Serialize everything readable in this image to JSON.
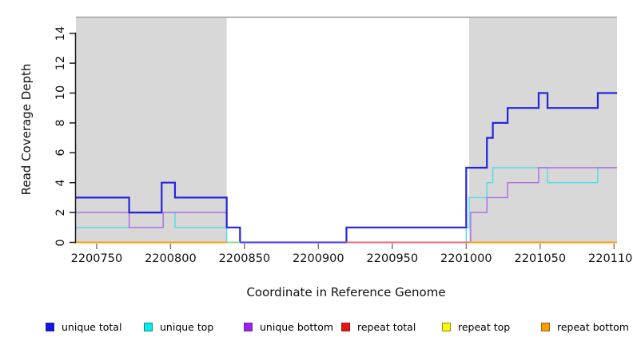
{
  "y_axis": {
    "label": "Read Coverage Depth",
    "tick_labels": [
      "0",
      "2",
      "4",
      "6",
      "8",
      "10",
      "12",
      "14"
    ],
    "tick_values": [
      0,
      2,
      4,
      6,
      8,
      10,
      12,
      14
    ]
  },
  "x_axis": {
    "label": "Coordinate in Reference Genome",
    "tick_labels": [
      "2200750",
      "2200800",
      "2200850",
      "2200900",
      "2200950",
      "2201000",
      "2201050",
      "2201100"
    ],
    "tick_values": [
      2200750,
      2200800,
      2200850,
      2200900,
      2200950,
      2201000,
      2201050,
      2201100
    ]
  },
  "legend": {
    "items": [
      {
        "label": "unique total",
        "color": "#1414e8"
      },
      {
        "label": "unique top",
        "color": "#00eded"
      },
      {
        "label": "unique bottom",
        "color": "#a020f0"
      },
      {
        "label": "repeat total",
        "color": "#ee1111"
      },
      {
        "label": "repeat top",
        "color": "#fbfb00"
      },
      {
        "label": "repeat bottom",
        "color": "#ff9d00"
      }
    ]
  },
  "chart_data": {
    "type": "line",
    "subtype": "step-coverage",
    "title": "",
    "xlabel": "Coordinate in Reference Genome",
    "ylabel": "Read Coverage Depth",
    "xlim": [
      2200736,
      2201102
    ],
    "ylim": [
      0,
      15.08
    ],
    "grid": false,
    "legend_position": "bottom",
    "shaded_region_color": "#d8d8d8",
    "plot_top_border_color": "#999999",
    "axis_color": "#1a1a1a",
    "x_tick_color": "#757575",
    "shaded_regions": [
      {
        "x0": 2200736,
        "x1": 2200838
      },
      {
        "x0": 2201002,
        "x1": 2201102
      }
    ],
    "series": [
      {
        "name": "repeat total",
        "color": "#ee1111",
        "width": 1.4,
        "steps": [
          [
            2200736,
            0
          ]
        ]
      },
      {
        "name": "repeat top",
        "color": "#fbfb00",
        "width": 1.4,
        "steps": [
          [
            2200736,
            0
          ]
        ]
      },
      {
        "name": "repeat bottom",
        "color": "#ff9d00",
        "width": 1.4,
        "steps": [
          [
            2200736,
            0
          ]
        ]
      },
      {
        "name": "unique top",
        "color": "#4fdde8",
        "width": 1.4,
        "steps": [
          [
            2200736,
            1
          ],
          [
            2200795,
            2
          ],
          [
            2200803,
            1
          ],
          [
            2200838,
            0
          ],
          [
            2201000,
            1
          ],
          [
            2201002,
            3
          ],
          [
            2201014,
            4
          ],
          [
            2201018,
            5
          ],
          [
            2201055,
            4
          ],
          [
            2201089,
            5
          ]
        ]
      },
      {
        "name": "unique bottom",
        "color": "#b06ae0",
        "width": 1.4,
        "steps": [
          [
            2200736,
            2
          ],
          [
            2200772,
            1
          ],
          [
            2200795,
            2
          ],
          [
            2200838,
            1
          ],
          [
            2200847,
            0
          ],
          [
            2201003,
            2
          ],
          [
            2201014,
            3
          ],
          [
            2201028,
            4
          ],
          [
            2201049,
            5
          ]
        ]
      },
      {
        "name": "unique total",
        "color": "#2424dd",
        "width": 2.2,
        "steps": [
          [
            2200736,
            3
          ],
          [
            2200772,
            2
          ],
          [
            2200794,
            4
          ],
          [
            2200803,
            3
          ],
          [
            2200838,
            1
          ],
          [
            2200847,
            0
          ],
          [
            2200919,
            1
          ],
          [
            2201000,
            5
          ],
          [
            2201014,
            7
          ],
          [
            2201018,
            8
          ],
          [
            2201028,
            9
          ],
          [
            2201049,
            10
          ],
          [
            2201055,
            9
          ],
          [
            2201089,
            10
          ]
        ]
      }
    ],
    "baseline_visible_segments": [
      {
        "x0": 2200736,
        "x1": 2200838,
        "color": "#ff9d00"
      },
      {
        "x0": 2200838,
        "x1": 2200847,
        "color": "#93d795"
      },
      {
        "x0": 2200847,
        "x1": 2200919,
        "color": "#5a4de0"
      },
      {
        "x0": 2200919,
        "x1": 2201002,
        "color": "#e4687a"
      },
      {
        "x0": 2201002,
        "x1": 2201102,
        "color": "#ff9d00"
      }
    ]
  }
}
